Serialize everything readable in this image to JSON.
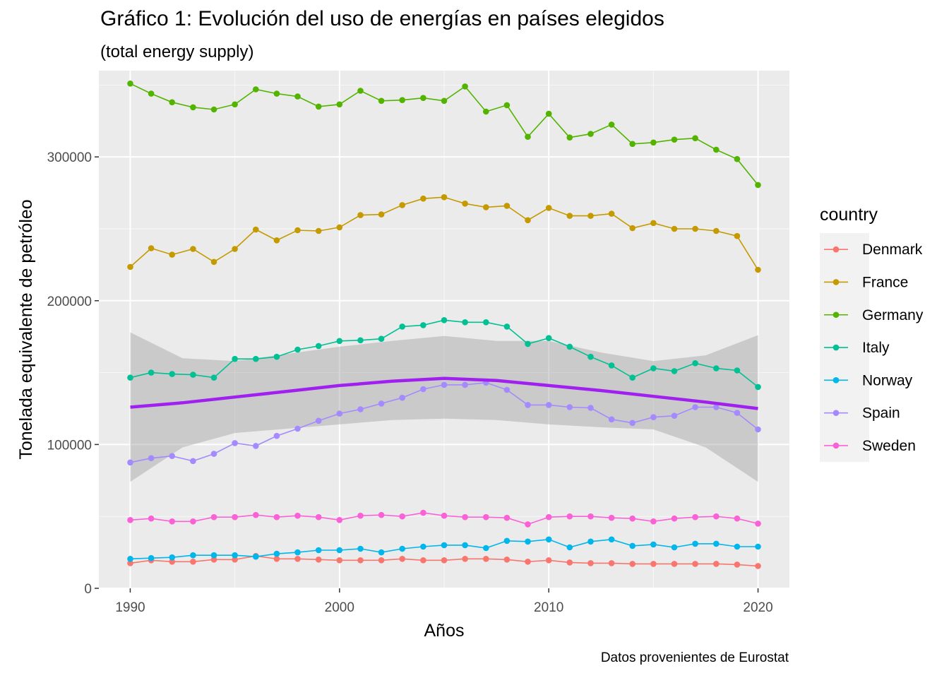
{
  "chart_data": {
    "type": "line",
    "title": "Gráfico 1: Evolución del uso de energías en países elegidos",
    "subtitle": "(total energy supply)",
    "caption": "Datos provenientes de Eurostat",
    "xlabel": "Años",
    "ylabel": "Tonelada equivalente de petróleo",
    "xlim": [
      1988.5,
      2021.5
    ],
    "ylim": [
      0,
      360000
    ],
    "xticks": [
      1990,
      2000,
      2010,
      2020
    ],
    "yticks": [
      0,
      100000,
      200000,
      300000
    ],
    "ytick_labels": [
      "0",
      "100000",
      "200000",
      "300000"
    ],
    "grid": true,
    "legend": {
      "title": "country",
      "position": "right"
    },
    "x": [
      1990,
      1991,
      1992,
      1993,
      1994,
      1995,
      1996,
      1997,
      1998,
      1999,
      2000,
      2001,
      2002,
      2003,
      2004,
      2005,
      2006,
      2007,
      2008,
      2009,
      2010,
      2011,
      2012,
      2013,
      2014,
      2015,
      2016,
      2017,
      2018,
      2019,
      2020
    ],
    "series": [
      {
        "name": "Denmark",
        "color": "#F8766D",
        "values": [
          17500,
          19500,
          18500,
          18500,
          20000,
          20000,
          22500,
          20500,
          20500,
          20000,
          19500,
          19500,
          19500,
          20500,
          19500,
          19500,
          20500,
          20500,
          20000,
          18500,
          19500,
          18000,
          17500,
          17500,
          17000,
          17000,
          17000,
          17000,
          17000,
          16500,
          15500
        ]
      },
      {
        "name": "France",
        "color": "#C49A00",
        "values": [
          223500,
          236500,
          232000,
          236000,
          227000,
          236000,
          249500,
          242000,
          249000,
          248500,
          251000,
          259500,
          260000,
          266500,
          271000,
          272000,
          267500,
          265000,
          266000,
          256000,
          264500,
          259000,
          259000,
          260500,
          250500,
          254000,
          250000,
          250000,
          248500,
          245000,
          221500
        ]
      },
      {
        "name": "Germany",
        "color": "#53B400",
        "values": [
          351000,
          344000,
          338000,
          334500,
          333000,
          336500,
          347000,
          344000,
          342000,
          335000,
          336500,
          346000,
          339000,
          339500,
          341000,
          339000,
          349000,
          331500,
          336000,
          314000,
          330000,
          313500,
          316000,
          322500,
          309000,
          310000,
          312000,
          313000,
          305000,
          298500,
          280500
        ]
      },
      {
        "name": "Italy",
        "color": "#00C094",
        "values": [
          146500,
          150000,
          149000,
          148500,
          146500,
          159500,
          159500,
          161000,
          166000,
          168500,
          172000,
          172500,
          173500,
          182000,
          183000,
          186500,
          185000,
          185000,
          182000,
          170000,
          174000,
          168000,
          161000,
          155000,
          146500,
          153000,
          151000,
          156500,
          153000,
          151500,
          140000
        ]
      },
      {
        "name": "Norway",
        "color": "#00B6EB",
        "values": [
          20500,
          21000,
          21500,
          23000,
          23000,
          23000,
          22000,
          24000,
          25000,
          26500,
          26500,
          27500,
          25000,
          27500,
          29000,
          30000,
          30000,
          28000,
          33000,
          32500,
          34000,
          28500,
          32500,
          34000,
          29500,
          30500,
          28500,
          31000,
          31000,
          29000,
          29000
        ]
      },
      {
        "name": "Spain",
        "color": "#A58AFF",
        "values": [
          87500,
          90500,
          92000,
          88500,
          93500,
          101000,
          99000,
          106000,
          111000,
          116500,
          121500,
          124500,
          128500,
          132500,
          138500,
          141500,
          141500,
          143000,
          138000,
          127500,
          127500,
          126000,
          125500,
          117500,
          115000,
          119000,
          120000,
          126000,
          126000,
          122000,
          110500
        ]
      },
      {
        "name": "Sweden",
        "color": "#FB61D7",
        "values": [
          47500,
          48500,
          46500,
          46500,
          49500,
          49500,
          51000,
          49500,
          50500,
          49500,
          47500,
          50500,
          51000,
          50000,
          52500,
          50500,
          49500,
          49500,
          49000,
          44500,
          49500,
          50000,
          50000,
          49000,
          48500,
          46500,
          48500,
          49500,
          50000,
          48500,
          45000
        ]
      }
    ],
    "smooth": {
      "color": "#A020F0",
      "band_color": "#999999",
      "x": [
        1990,
        1992.5,
        1995,
        1997.5,
        2000,
        2002.5,
        2005,
        2007.5,
        2010,
        2012.5,
        2015,
        2017.5,
        2020
      ],
      "fit": [
        126000,
        129000,
        133000,
        137000,
        141000,
        144000,
        146000,
        144500,
        141000,
        137500,
        133500,
        129500,
        125000
      ],
      "lower": [
        74000,
        98000,
        108000,
        111000,
        114000,
        117000,
        118000,
        117000,
        114000,
        112000,
        110500,
        98000,
        74000
      ],
      "upper": [
        178000,
        160000,
        158000,
        163000,
        168000,
        172000,
        175500,
        172000,
        172000,
        164000,
        158000,
        162000,
        176000
      ]
    }
  }
}
